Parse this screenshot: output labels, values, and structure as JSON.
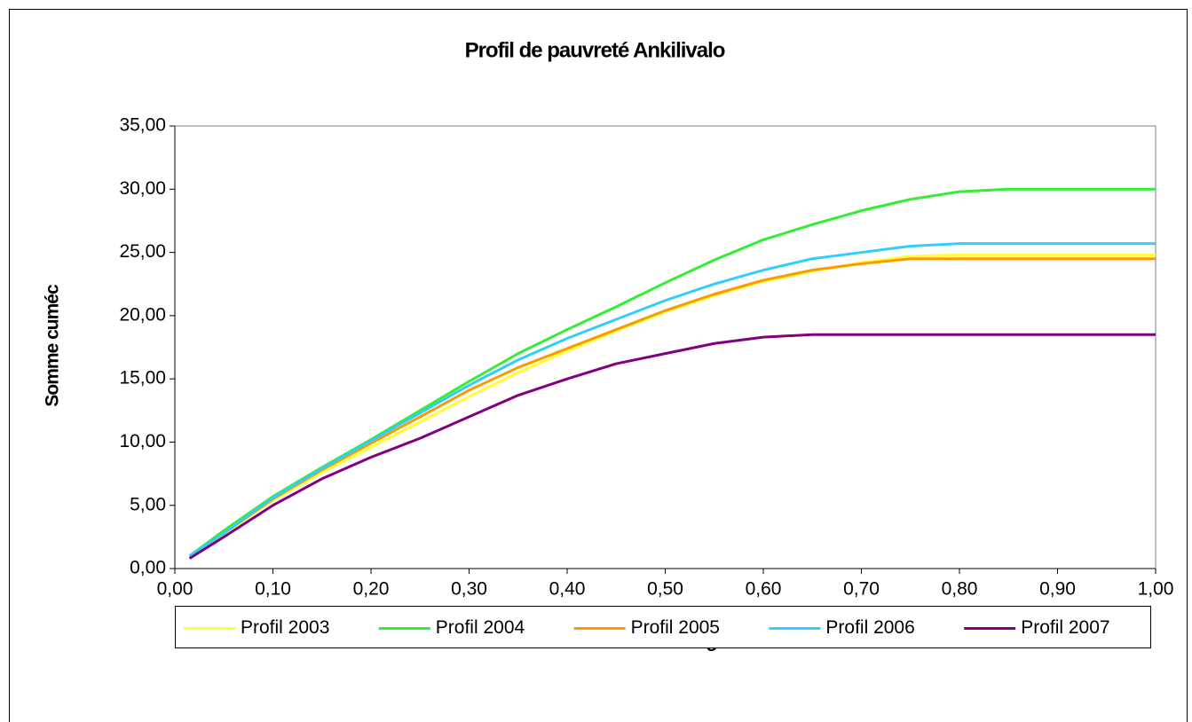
{
  "chart_data": {
    "type": "line",
    "title": "Profil de pauvreté Ankilivalo",
    "xlabel": "%cum ménage",
    "ylabel": "Somme cuméc",
    "x": [
      0.015,
      0.05,
      0.1,
      0.15,
      0.2,
      0.25,
      0.3,
      0.35,
      0.4,
      0.45,
      0.5,
      0.55,
      0.6,
      0.65,
      0.7,
      0.75,
      0.8,
      0.85,
      0.9,
      1.0
    ],
    "series": [
      {
        "name": "Profil 2003",
        "color": "#ffff33",
        "values": [
          0.9,
          2.7,
          5.4,
          7.6,
          9.6,
          11.6,
          13.6,
          15.5,
          17.2,
          18.8,
          20.3,
          21.6,
          22.7,
          23.5,
          24.2,
          24.7,
          24.8,
          24.8,
          24.8,
          24.8
        ]
      },
      {
        "name": "Profil 2004",
        "color": "#33ee33",
        "values": [
          1.0,
          3.0,
          5.7,
          8.0,
          10.2,
          12.5,
          14.8,
          17.0,
          18.9,
          20.7,
          22.6,
          24.4,
          26.0,
          27.2,
          28.3,
          29.2,
          29.8,
          30.0,
          30.0,
          30.0
        ]
      },
      {
        "name": "Profil 2005",
        "color": "#ff9900",
        "values": [
          1.0,
          2.8,
          5.5,
          7.8,
          9.9,
          12.0,
          14.1,
          15.9,
          17.4,
          18.9,
          20.4,
          21.7,
          22.8,
          23.6,
          24.1,
          24.5,
          24.5,
          24.5,
          24.5,
          24.5
        ]
      },
      {
        "name": "Profil 2006",
        "color": "#33ccff",
        "values": [
          1.0,
          2.8,
          5.6,
          7.9,
          10.1,
          12.3,
          14.5,
          16.5,
          18.2,
          19.7,
          21.2,
          22.5,
          23.6,
          24.5,
          25.0,
          25.5,
          25.7,
          25.7,
          25.7,
          25.7
        ]
      },
      {
        "name": "Profil 2007",
        "color": "#800080",
        "values": [
          0.8,
          2.5,
          5.0,
          7.1,
          8.8,
          10.3,
          12.0,
          13.7,
          15.0,
          16.2,
          17.0,
          17.8,
          18.3,
          18.5,
          18.5,
          18.5,
          18.5,
          18.5,
          18.5,
          18.5
        ]
      }
    ],
    "xlim": [
      0,
      1
    ],
    "xticks": [
      {
        "value": 0,
        "label": "0,00"
      },
      {
        "value": 0.1,
        "label": "0,10"
      },
      {
        "value": 0.2,
        "label": "0,20"
      },
      {
        "value": 0.3,
        "label": "0,30"
      },
      {
        "value": 0.4,
        "label": "0,40"
      },
      {
        "value": 0.5,
        "label": "0,50"
      },
      {
        "value": 0.6,
        "label": "0,60"
      },
      {
        "value": 0.7,
        "label": "0,70"
      },
      {
        "value": 0.8,
        "label": "0,80"
      },
      {
        "value": 0.9,
        "label": "0,90"
      },
      {
        "value": 1,
        "label": "1,00"
      }
    ],
    "ylim": [
      0,
      35
    ],
    "yticks": [
      {
        "value": 0,
        "label": "0,00"
      },
      {
        "value": 5,
        "label": "5,00"
      },
      {
        "value": 10,
        "label": "10,00"
      },
      {
        "value": 15,
        "label": "15,00"
      },
      {
        "value": 20,
        "label": "20,00"
      },
      {
        "value": 25,
        "label": "25,00"
      },
      {
        "value": 30,
        "label": "30,00"
      },
      {
        "value": 35,
        "label": "35,00"
      }
    ],
    "legend": "bottom"
  }
}
